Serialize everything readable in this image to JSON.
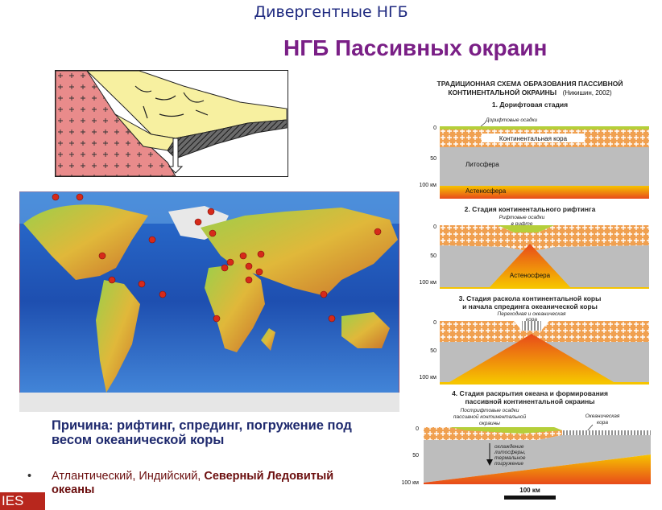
{
  "heading": "Дивергентные НГБ",
  "title": "НГБ Пассивных окраин",
  "cause": "Причина: рифтинг, спрединг, погружение под весом океанической коры",
  "bullet": {
    "marker": "•",
    "part1": "Атлантический, Индийский, ",
    "part2": "Северный Ледовитый океаны"
  },
  "logo": "IES",
  "schema": {
    "title_line1": "ТРАДИЦИОННАЯ СХЕМА ОБРАЗОВАНИЯ ПАССИВНОЙ",
    "title_line2": "КОНТИНЕНТАЛЬНОЙ ОКРАИНЫ",
    "author": "(Никишин, 2002)",
    "stage1": {
      "title": "1. Дорифтовая стадия",
      "drift_sediments": "Дорифтовые осадки",
      "crust": "Континентальная кора",
      "lithosphere": "Литосфера",
      "asthenosphere": "Астеносфера",
      "ticks": [
        "0",
        "50",
        "100 км"
      ]
    },
    "stage2": {
      "title": "2. Стадия континентального рифтинга",
      "rift_sediments_1": "Рифтовые осадки",
      "rift_sediments_2": "в рифте",
      "asthenosphere": "Астеносфера",
      "ticks": [
        "0",
        "50",
        "100 км"
      ]
    },
    "stage3": {
      "title_line1": "3. Стадия раскола континентальной коры",
      "title_line2": "и начала спрединга океанической коры",
      "transitional_1": "Переходная и океаническая",
      "transitional_2": "кора",
      "ticks": [
        "0",
        "50",
        "100 км"
      ]
    },
    "stage4": {
      "title_line1": "4. Стадия раскрытия океана и формирования",
      "title_line2": "пассивной континентальной окраины",
      "postrift_1": "Пострифтовые осадки",
      "postrift_2": "пассивной континентальной",
      "postrift_3": "окраины",
      "oceanic_1": "Океаническая",
      "oceanic_2": "кора",
      "cooling_1": "охлаждение",
      "cooling_2": "литосферы,",
      "cooling_3": "термальное",
      "cooling_4": "погружение",
      "ticks": [
        "0",
        "50",
        "100 км"
      ]
    },
    "scale_label": "100 км"
  },
  "colors": {
    "heading": "#1f2a80",
    "title": "#7a1f86",
    "crust": "#f0a050",
    "lithosphere": "#bdbdbd",
    "asthenosphere": "#f4b400",
    "map_ocean": "#1e4fb0",
    "map_land": "#d7b23a",
    "marker": "#d62a1a"
  }
}
